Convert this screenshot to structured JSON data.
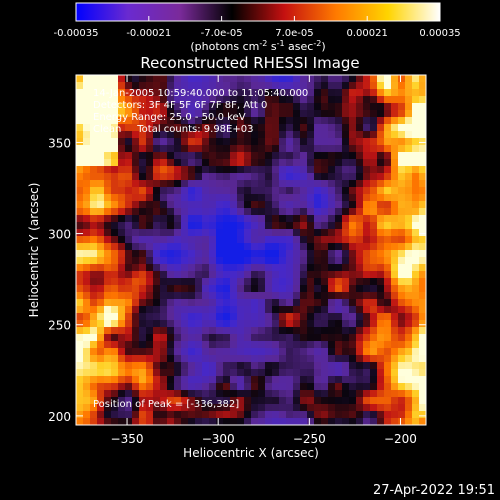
{
  "colorbar": {
    "tick_labels": [
      "-0.00035",
      "-0.00021",
      "-7.0e-05",
      "7.0e-05",
      "0.00021",
      "0.00035"
    ],
    "tick_values": [
      -0.00035,
      -0.00021,
      -7e-05,
      7e-05,
      0.00021,
      0.00035
    ],
    "range": [
      -0.00035,
      0.00035
    ],
    "units_parts": {
      "a": "(photons cm",
      "b": "-2",
      "c": " s",
      "d": "-1",
      "e": " asec",
      "f": "-2",
      "g": ")"
    },
    "colors": [
      "#0000ff",
      "#6a2ad0",
      "#7a2a9a",
      "#000000",
      "#c41010",
      "#ff7a00",
      "#ffd400",
      "#ffffff"
    ]
  },
  "chart_data": {
    "type": "heatmap",
    "title": "Reconstructed RHESSI Image",
    "xlabel": "Heliocentric X (arcsec)",
    "ylabel": "Heliocentric Y (arcsec)",
    "xlim": [
      -378,
      -186
    ],
    "ylim": [
      195,
      387
    ],
    "x_ticks": [
      -350,
      -300,
      -250,
      -200
    ],
    "y_ticks": [
      200,
      250,
      300,
      350
    ],
    "annotations": [
      "14-Jan-2005 10:59:40.000 to 11:05:40.000",
      "Detectors: 3F 4F 5F 6F 7F 8F, Att 0",
      "Energy Range: 25.0 - 50.0 keV",
      "Clean     Total counts: 9.98E+03"
    ],
    "peak_label": "Position of Peak = [-336,382]",
    "peak": [
      -336,
      382
    ]
  },
  "timestamp": "27-Apr-2022 19:51"
}
